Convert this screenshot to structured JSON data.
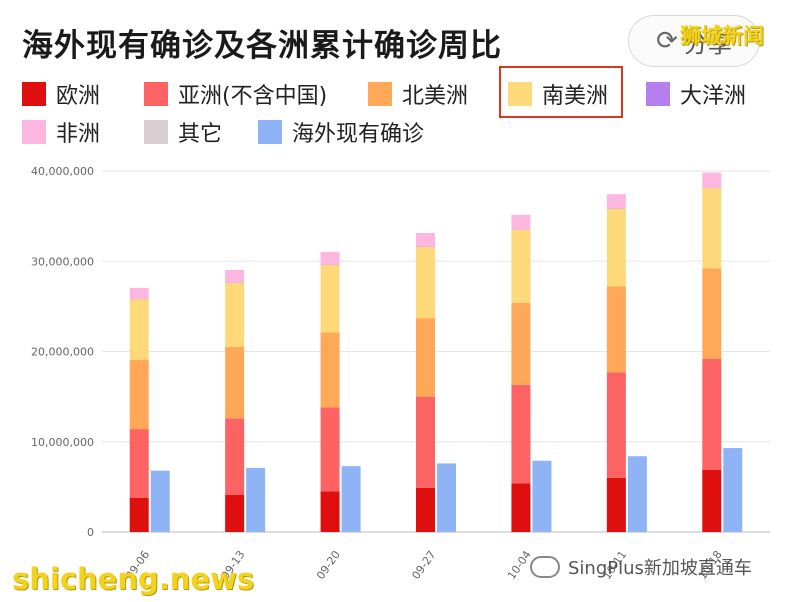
{
  "title": "海外现有确诊及各洲累计确诊周比",
  "share_label": "分享",
  "watermark_top": "狮城新闻",
  "watermark_bottom": "shicheng.news",
  "watermark_right": "SingPlus新加坡直通车",
  "colors": {
    "europe": "#e00f0f",
    "asia": "#fe6363",
    "north_america": "#fea858",
    "south_america": "#fed97a",
    "oceania": "#b57ff0",
    "africa": "#fcb6e0",
    "other": "#d9cfd3",
    "overseas_current": "#8fb4f5",
    "highlight": "#d9381e"
  },
  "legend": [
    {
      "label": "欧洲",
      "color": "#e00f0f"
    },
    {
      "label": "亚洲(不含中国)",
      "color": "#fe6363"
    },
    {
      "label": "北美洲",
      "color": "#fea858"
    },
    {
      "label": "南美洲",
      "color": "#fed97a"
    },
    {
      "label": "大洋洲",
      "color": "#b57ff0"
    },
    {
      "label": "非洲",
      "color": "#fcb6e0"
    },
    {
      "label": "其它",
      "color": "#d9cfd3"
    },
    {
      "label": "海外现有确诊",
      "color": "#8fb4f5"
    }
  ],
  "highlighted_legend": "南美洲",
  "chart_data": {
    "type": "bar",
    "stacked": true,
    "title": "海外现有确诊及各洲累计确诊周比",
    "categories": [
      "09-06",
      "09-13",
      "09-20",
      "09-27",
      "10-04",
      "10-11",
      "10-18"
    ],
    "ylim": [
      0,
      40000000
    ],
    "yticks": [
      0,
      10000000,
      20000000,
      30000000,
      40000000
    ],
    "ytick_labels": [
      "0",
      "10,000,000",
      "20,000,000",
      "30,000,000",
      "40,000,000"
    ],
    "grid": true,
    "legend_position": "top",
    "stacked_series": [
      {
        "name": "欧洲",
        "values": [
          3800000,
          4100000,
          4500000,
          4900000,
          5400000,
          6000000,
          6900000
        ]
      },
      {
        "name": "亚洲(不含中国)",
        "values": [
          7600000,
          8500000,
          9300000,
          10100000,
          10900000,
          11700000,
          12300000
        ]
      },
      {
        "name": "北美洲",
        "values": [
          7700000,
          7900000,
          8300000,
          8700000,
          9100000,
          9500000,
          10000000
        ]
      },
      {
        "name": "南美洲",
        "values": [
          6700000,
          7100000,
          7500000,
          7900000,
          8100000,
          8600000,
          8900000
        ]
      },
      {
        "name": "大洋洲",
        "values": [
          30000,
          30000,
          30000,
          30000,
          30000,
          30000,
          30000
        ]
      },
      {
        "name": "非洲",
        "values": [
          1200000,
          1400000,
          1400000,
          1500000,
          1600000,
          1600000,
          1700000
        ]
      },
      {
        "name": "其它",
        "values": [
          1000,
          1000,
          1000,
          1000,
          1000,
          1000,
          1000
        ]
      }
    ],
    "side_series": {
      "name": "海外现有确诊",
      "values": [
        6800000,
        7100000,
        7300000,
        7600000,
        7900000,
        8400000,
        9300000
      ]
    }
  }
}
